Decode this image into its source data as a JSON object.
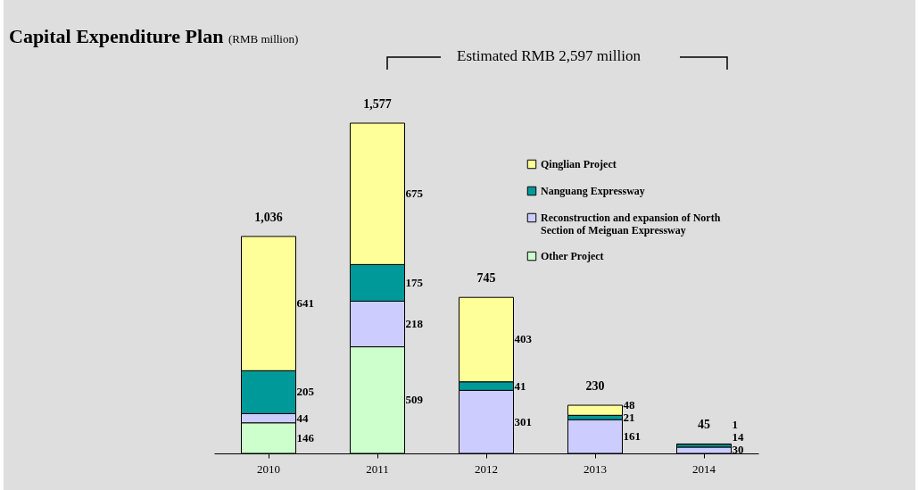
{
  "chart_data": {
    "type": "bar",
    "title": "Capital Expenditure Plan",
    "subtitle": "(RMB million)",
    "categories": [
      "2010",
      "2011",
      "2012",
      "2013",
      "2014"
    ],
    "stacked": true,
    "legend": "top right",
    "annotations": [
      "Estimated RMB 2,597 million"
    ],
    "series": [
      {
        "name": "Other Project",
        "color": "#ccffcc",
        "values": [
          146,
          509,
          null,
          null,
          null
        ]
      },
      {
        "name": "Reconstruction and expansion of North Section of Meiguan Expressway",
        "color": "#ccccff",
        "values": [
          44,
          218,
          301,
          161,
          30
        ]
      },
      {
        "name": "Nanguang Expressway",
        "color": "#009999",
        "values": [
          205,
          175,
          41,
          21,
          14
        ]
      },
      {
        "name": "Qinglian Project",
        "color": "#ffff99",
        "values": [
          641,
          675,
          403,
          48,
          1
        ]
      }
    ],
    "data_labels": true,
    "totals": [
      "1,036",
      "1,577",
      "745",
      "230",
      "45"
    ]
  }
}
